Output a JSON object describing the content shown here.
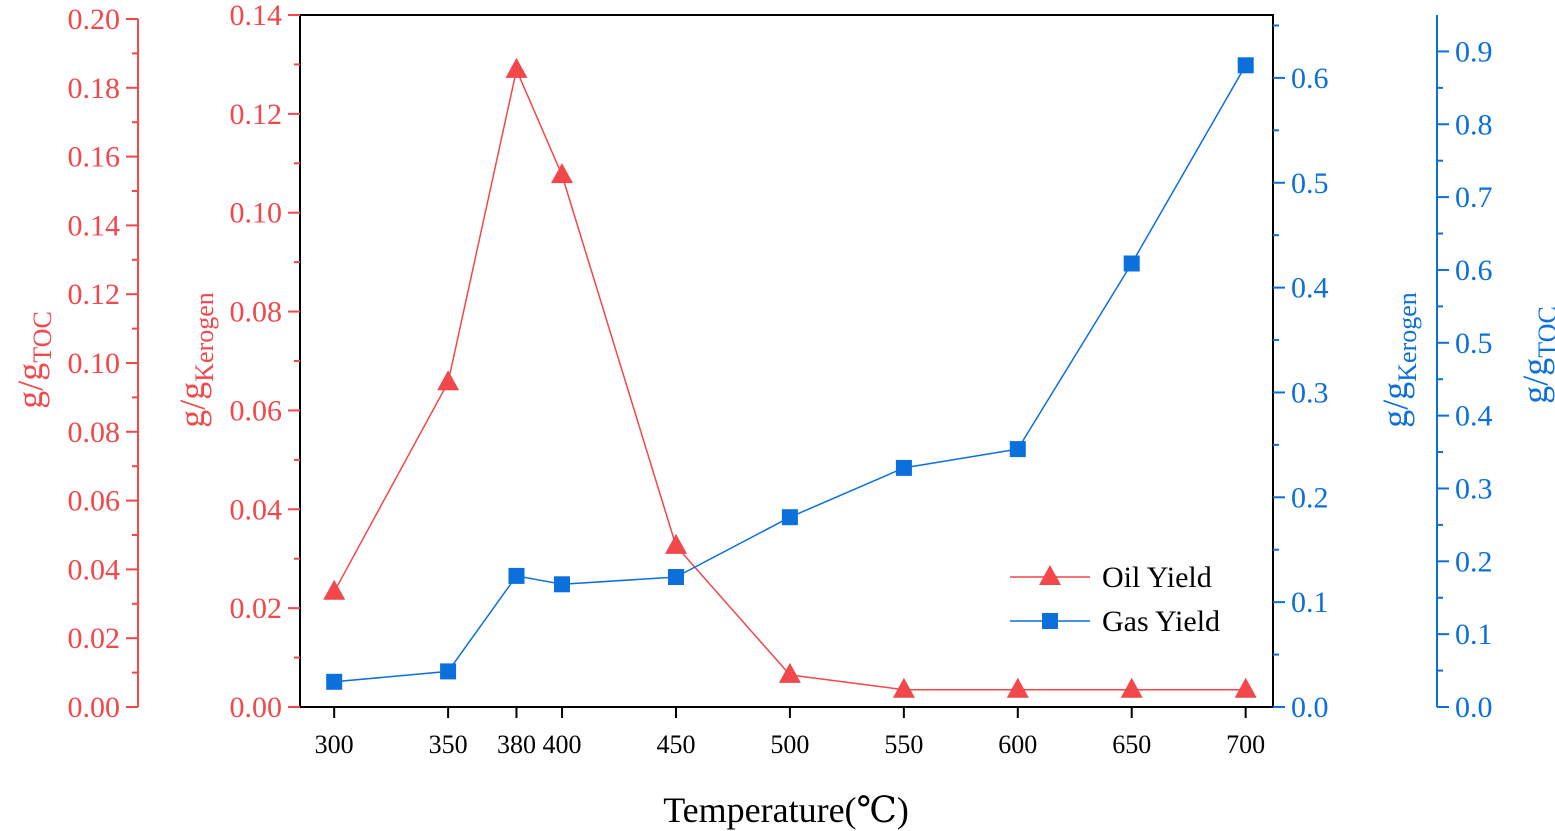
{
  "colors": {
    "oil": "#f2474b",
    "gas": "#0b6fdc",
    "frame": "#000000"
  },
  "chart_data": {
    "type": "line",
    "xlabel": "Temperature(℃)",
    "x": [
      300,
      350,
      380,
      400,
      450,
      500,
      550,
      600,
      650,
      700
    ],
    "x_tick_labels": [
      "300",
      "350",
      "380",
      "400",
      "450",
      "500",
      "550",
      "600",
      "650",
      "700"
    ],
    "xlim": [
      285,
      712
    ],
    "grid": false,
    "legend_position": "bottom-right",
    "axes": {
      "left_outer": {
        "label_main": "g/g",
        "label_sub": "TOC",
        "ylim": [
          0,
          0.2
        ],
        "ticks": [
          "0.00",
          "0.02",
          "0.04",
          "0.06",
          "0.08",
          "0.10",
          "0.12",
          "0.14",
          "0.16",
          "0.18",
          "0.20"
        ]
      },
      "left_inner": {
        "label_main": "g/g",
        "label_sub": "Kerogen",
        "ylim": [
          0,
          0.14
        ],
        "ticks": [
          "0.00",
          "0.02",
          "0.04",
          "0.06",
          "0.08",
          "0.10",
          "0.12",
          "0.14"
        ]
      },
      "right_inner": {
        "label_main": "g/g",
        "label_sub": "Kerogen",
        "ylim": [
          0,
          0.66
        ],
        "ticks": [
          "0.0",
          "0.1",
          "0.2",
          "0.3",
          "0.4",
          "0.5",
          "0.6"
        ]
      },
      "right_outer": {
        "label_main": "g/g",
        "label_sub": "TOC",
        "ylim": [
          0,
          0.95
        ],
        "ticks": [
          "0.0",
          "0.1",
          "0.2",
          "0.3",
          "0.4",
          "0.5",
          "0.6",
          "0.7",
          "0.8",
          "0.9"
        ]
      }
    },
    "series": [
      {
        "name": "Oil Yield",
        "axis": "left_inner",
        "marker": "triangle",
        "values": [
          0.0233,
          0.0657,
          0.1289,
          0.1076,
          0.0326,
          0.0065,
          0.0035,
          0.0035,
          0.0035,
          0.0035
        ]
      },
      {
        "name": "Gas Yield",
        "axis": "right_inner",
        "marker": "square",
        "values": [
          0.024,
          0.034,
          0.125,
          0.117,
          0.124,
          0.181,
          0.228,
          0.246,
          0.423,
          0.612
        ]
      }
    ]
  }
}
